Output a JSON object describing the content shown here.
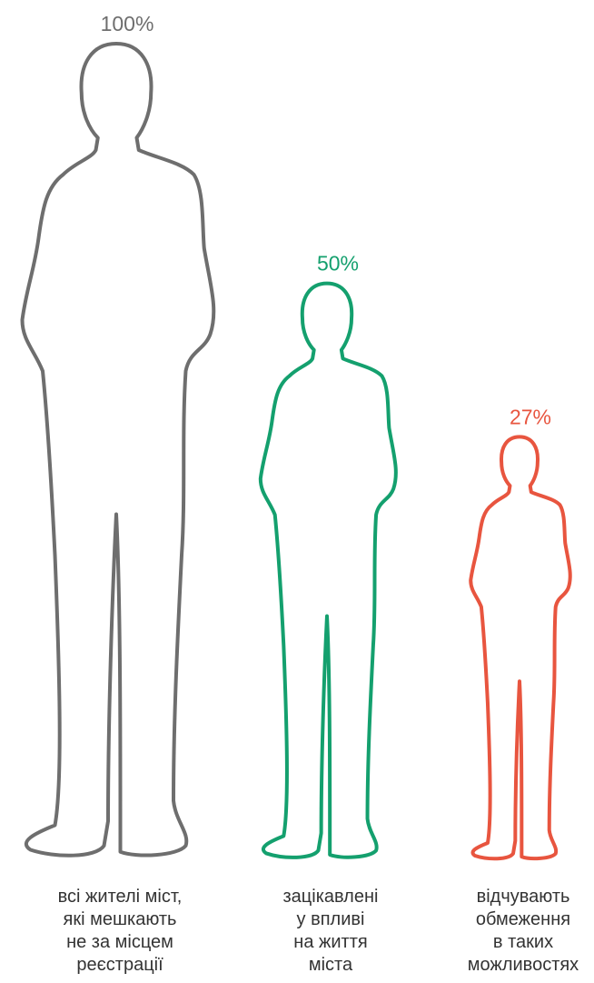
{
  "chart_data": {
    "type": "pictogram",
    "categories": [
      [
        "всі жителі міст,",
        "які мешкають",
        "не за місцем",
        "реєстрації"
      ],
      [
        "зацікавлені",
        "у впливі",
        "на життя",
        "міста"
      ],
      [
        "відчувають",
        "обмеження",
        "в таких",
        "можливостях"
      ]
    ],
    "values": [
      100,
      50,
      27
    ],
    "value_labels": [
      "100%",
      "50%",
      "27%"
    ],
    "colors": [
      "#6e6e6e",
      "#14a06e",
      "#e8553f"
    ]
  }
}
